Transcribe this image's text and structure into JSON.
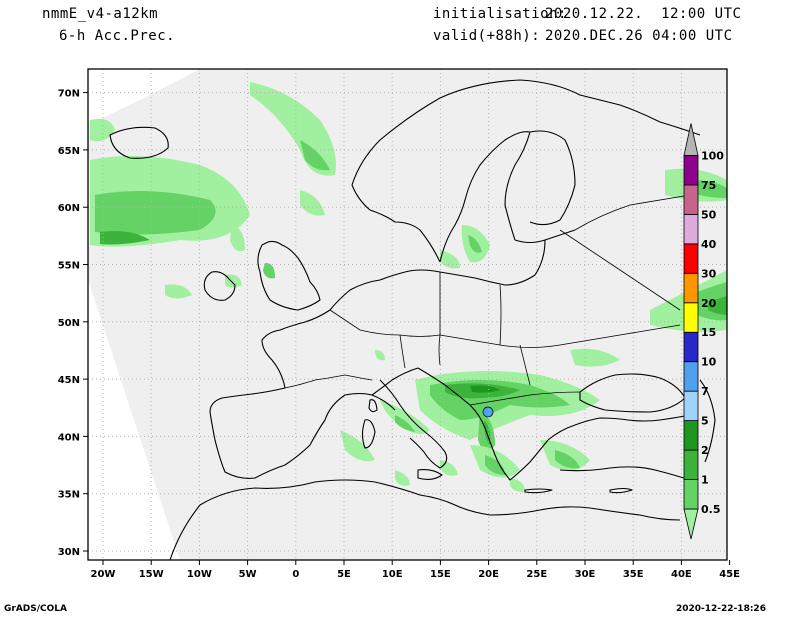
{
  "header": {
    "model": "nmmE_v4-a12km",
    "field": "6-h Acc.Prec.",
    "init_label": "initialisation:",
    "init_value": "2020.12.22.  12:00 UTC",
    "valid_label": "valid(+88h):",
    "valid_value": "2020.DEC.26 04:00 UTC"
  },
  "map": {
    "lon_labels": [
      "20W",
      "15W",
      "10W",
      "5W",
      "0",
      "5E",
      "10E",
      "15E",
      "20E",
      "25E",
      "30E",
      "35E",
      "40E",
      "45E"
    ],
    "lat_labels": [
      "30N",
      "35N",
      "40N",
      "45N",
      "50N",
      "55N",
      "60N",
      "65N",
      "70N"
    ],
    "colors": {
      "domain": "#efefef",
      "outside": "#ffffff",
      "coast": "#000000",
      "grid": "#b4b4b4",
      "lightgreen": "#a0f0a0",
      "green": "#64d264",
      "midgreen": "#3cb43c",
      "darkgreen": "#1e961e"
    }
  },
  "legend": {
    "labels": [
      "0.5",
      "1",
      "2",
      "5",
      "7",
      "10",
      "15",
      "20",
      "30",
      "40",
      "50",
      "75",
      "100"
    ],
    "colors": [
      "#a0f0a0",
      "#64d264",
      "#3cb43c",
      "#1e961e",
      "#a0d2fa",
      "#50a0f0",
      "#2828c8",
      "#ffff00",
      "#ff9600",
      "#fa0000",
      "#dcaadc",
      "#c8648c",
      "#8c008c",
      "#b4b4b4"
    ]
  },
  "footer": {
    "left": "GrADS/COLA",
    "right": "2020-12-22-18:26"
  }
}
